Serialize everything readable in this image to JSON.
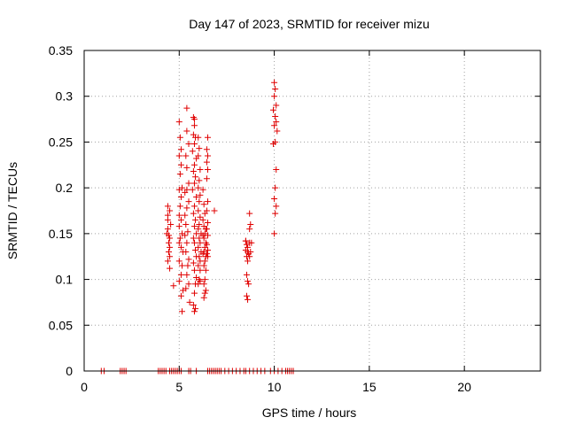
{
  "chart_data": {
    "type": "scatter",
    "title": "Day 147 of 2023, SRMTID for receiver mizu",
    "xlabel": "GPS time / hours",
    "ylabel": "SRMTID / TECUs",
    "xlim": [
      0,
      24
    ],
    "ylim": [
      0,
      0.35
    ],
    "x_ticks": [
      0,
      5,
      10,
      15,
      20
    ],
    "x_tick_labels": [
      "0",
      "5",
      "10",
      "15",
      "20"
    ],
    "y_ticks": [
      0,
      0.05,
      0.1,
      0.15,
      0.2,
      0.25,
      0.3,
      0.35
    ],
    "y_tick_labels": [
      "0",
      "0.05",
      "0.1",
      "0.15",
      "0.2",
      "0.25",
      "0.3",
      "0.35"
    ],
    "grid": true,
    "legend": "none",
    "marker": "plus",
    "series_color": "#e00000",
    "series": [
      {
        "points": [
          [
            0.9,
            0
          ],
          [
            1.05,
            0
          ],
          [
            1.9,
            0
          ],
          [
            2.0,
            0
          ],
          [
            2.1,
            0
          ],
          [
            2.2,
            0
          ],
          [
            3.9,
            0
          ],
          [
            4.0,
            0
          ],
          [
            4.1,
            0
          ],
          [
            4.2,
            0
          ],
          [
            4.3,
            0
          ],
          [
            4.5,
            0
          ],
          [
            4.6,
            0
          ],
          [
            4.7,
            0
          ],
          [
            4.8,
            0
          ],
          [
            4.9,
            0
          ],
          [
            5.0,
            0
          ],
          [
            5.1,
            0
          ],
          [
            5.5,
            0
          ],
          [
            5.6,
            0
          ],
          [
            5.9,
            0
          ],
          [
            6.5,
            0
          ],
          [
            6.6,
            0
          ],
          [
            6.7,
            0
          ],
          [
            6.8,
            0
          ],
          [
            6.9,
            0
          ],
          [
            7.0,
            0
          ],
          [
            7.1,
            0
          ],
          [
            7.2,
            0
          ],
          [
            7.4,
            0
          ],
          [
            7.6,
            0
          ],
          [
            7.8,
            0
          ],
          [
            8.0,
            0
          ],
          [
            8.2,
            0
          ],
          [
            8.4,
            0
          ],
          [
            8.5,
            0
          ],
          [
            8.7,
            0
          ],
          [
            8.9,
            0
          ],
          [
            9.1,
            0
          ],
          [
            9.3,
            0
          ],
          [
            9.5,
            0
          ],
          [
            9.8,
            0
          ],
          [
            10.0,
            0
          ],
          [
            10.2,
            0
          ],
          [
            10.4,
            0
          ],
          [
            10.6,
            0
          ],
          [
            10.7,
            0
          ],
          [
            10.8,
            0
          ],
          [
            10.9,
            0
          ],
          [
            11.0,
            0
          ],
          [
            4.4,
            0.18
          ],
          [
            4.4,
            0.165
          ],
          [
            4.4,
            0.155
          ],
          [
            4.45,
            0.148
          ],
          [
            4.45,
            0.14
          ],
          [
            4.5,
            0.135
          ],
          [
            4.45,
            0.13
          ],
          [
            4.5,
            0.125
          ],
          [
            4.4,
            0.12
          ],
          [
            4.5,
            0.112
          ],
          [
            4.4,
            0.17
          ],
          [
            4.55,
            0.16
          ],
          [
            4.5,
            0.175
          ],
          [
            4.35,
            0.15
          ],
          [
            4.5,
            0.145
          ],
          [
            4.7,
            0.093
          ],
          [
            5.0,
            0.272
          ],
          [
            5.05,
            0.255
          ],
          [
            5.1,
            0.242
          ],
          [
            5.0,
            0.235
          ],
          [
            5.1,
            0.225
          ],
          [
            5.05,
            0.215
          ],
          [
            5.15,
            0.2
          ],
          [
            5.0,
            0.198
          ],
          [
            5.1,
            0.19
          ],
          [
            5.05,
            0.18
          ],
          [
            5.0,
            0.17
          ],
          [
            5.1,
            0.165
          ],
          [
            5.0,
            0.158
          ],
          [
            5.15,
            0.15
          ],
          [
            5.05,
            0.145
          ],
          [
            5.0,
            0.14
          ],
          [
            5.1,
            0.135
          ],
          [
            5.2,
            0.13
          ],
          [
            5.0,
            0.12
          ],
          [
            5.15,
            0.115
          ],
          [
            5.1,
            0.105
          ],
          [
            5.0,
            0.098
          ],
          [
            5.2,
            0.088
          ],
          [
            5.1,
            0.082
          ],
          [
            5.15,
            0.065
          ],
          [
            5.4,
            0.287
          ],
          [
            5.4,
            0.262
          ],
          [
            5.5,
            0.248
          ],
          [
            5.35,
            0.235
          ],
          [
            5.4,
            0.222
          ],
          [
            5.5,
            0.205
          ],
          [
            5.4,
            0.198
          ],
          [
            5.3,
            0.195
          ],
          [
            5.5,
            0.185
          ],
          [
            5.4,
            0.178
          ],
          [
            5.3,
            0.17
          ],
          [
            5.35,
            0.16
          ],
          [
            5.45,
            0.152
          ],
          [
            5.3,
            0.148
          ],
          [
            5.4,
            0.14
          ],
          [
            5.35,
            0.13
          ],
          [
            5.5,
            0.122
          ],
          [
            5.45,
            0.115
          ],
          [
            5.4,
            0.105
          ],
          [
            5.5,
            0.095
          ],
          [
            5.35,
            0.09
          ],
          [
            5.55,
            0.075
          ],
          [
            5.75,
            0.277
          ],
          [
            5.8,
            0.275
          ],
          [
            5.8,
            0.268
          ],
          [
            5.75,
            0.258
          ],
          [
            5.85,
            0.255
          ],
          [
            5.8,
            0.248
          ],
          [
            5.7,
            0.24
          ],
          [
            5.9,
            0.232
          ],
          [
            5.8,
            0.225
          ],
          [
            5.75,
            0.218
          ],
          [
            5.85,
            0.212
          ],
          [
            5.8,
            0.205
          ],
          [
            5.7,
            0.198
          ],
          [
            5.9,
            0.19
          ],
          [
            5.8,
            0.18
          ],
          [
            5.75,
            0.172
          ],
          [
            5.85,
            0.165
          ],
          [
            5.8,
            0.158
          ],
          [
            5.9,
            0.15
          ],
          [
            5.75,
            0.145
          ],
          [
            5.8,
            0.14
          ],
          [
            5.85,
            0.132
          ],
          [
            5.9,
            0.125
          ],
          [
            5.75,
            0.118
          ],
          [
            5.8,
            0.11
          ],
          [
            5.9,
            0.102
          ],
          [
            5.85,
            0.095
          ],
          [
            5.8,
            0.085
          ],
          [
            5.75,
            0.072
          ],
          [
            5.85,
            0.068
          ],
          [
            5.8,
            0.065
          ],
          [
            6.0,
            0.255
          ],
          [
            6.05,
            0.243
          ],
          [
            6.0,
            0.235
          ],
          [
            6.1,
            0.22
          ],
          [
            6.05,
            0.208
          ],
          [
            6.0,
            0.2
          ],
          [
            6.1,
            0.192
          ],
          [
            6.05,
            0.185
          ],
          [
            6.0,
            0.175
          ],
          [
            6.1,
            0.168
          ],
          [
            6.05,
            0.16
          ],
          [
            6.0,
            0.155
          ],
          [
            6.15,
            0.15
          ],
          [
            6.05,
            0.145
          ],
          [
            6.1,
            0.14
          ],
          [
            6.0,
            0.135
          ],
          [
            6.15,
            0.13
          ],
          [
            6.05,
            0.125
          ],
          [
            6.1,
            0.12
          ],
          [
            6.0,
            0.115
          ],
          [
            6.1,
            0.11
          ],
          [
            6.05,
            0.1
          ],
          [
            6.0,
            0.095
          ],
          [
            6.1,
            0.098
          ],
          [
            6.25,
            0.198
          ],
          [
            6.3,
            0.182
          ],
          [
            6.35,
            0.172
          ],
          [
            6.25,
            0.165
          ],
          [
            6.3,
            0.158
          ],
          [
            6.4,
            0.155
          ],
          [
            6.35,
            0.15
          ],
          [
            6.25,
            0.148
          ],
          [
            6.3,
            0.145
          ],
          [
            6.4,
            0.14
          ],
          [
            6.35,
            0.135
          ],
          [
            6.3,
            0.13
          ],
          [
            6.25,
            0.128
          ],
          [
            6.4,
            0.125
          ],
          [
            6.35,
            0.12
          ],
          [
            6.3,
            0.115
          ],
          [
            6.4,
            0.11
          ],
          [
            6.35,
            0.1
          ],
          [
            6.3,
            0.095
          ],
          [
            6.4,
            0.088
          ],
          [
            6.35,
            0.085
          ],
          [
            6.3,
            0.08
          ],
          [
            6.5,
            0.255
          ],
          [
            6.45,
            0.242
          ],
          [
            6.5,
            0.235
          ],
          [
            6.45,
            0.228
          ],
          [
            6.5,
            0.22
          ],
          [
            6.45,
            0.21
          ],
          [
            6.5,
            0.185
          ],
          [
            6.45,
            0.175
          ],
          [
            6.5,
            0.162
          ],
          [
            6.45,
            0.155
          ],
          [
            6.5,
            0.148
          ],
          [
            6.45,
            0.138
          ],
          [
            6.5,
            0.132
          ],
          [
            6.45,
            0.128
          ],
          [
            6.5,
            0.125
          ],
          [
            6.85,
            0.175
          ],
          [
            8.5,
            0.142
          ],
          [
            8.55,
            0.138
          ],
          [
            8.6,
            0.135
          ],
          [
            8.5,
            0.132
          ],
          [
            8.65,
            0.128
          ],
          [
            8.55,
            0.125
          ],
          [
            8.6,
            0.12
          ],
          [
            8.5,
            0.142
          ],
          [
            8.7,
            0.14
          ],
          [
            8.6,
            0.13
          ],
          [
            8.55,
            0.105
          ],
          [
            8.6,
            0.098
          ],
          [
            8.65,
            0.095
          ],
          [
            8.55,
            0.082
          ],
          [
            8.6,
            0.078
          ],
          [
            8.7,
            0.172
          ],
          [
            8.75,
            0.16
          ],
          [
            8.7,
            0.155
          ],
          [
            8.8,
            0.14
          ],
          [
            8.75,
            0.13
          ],
          [
            8.7,
            0.125
          ],
          [
            10.0,
            0.315
          ],
          [
            10.05,
            0.308
          ],
          [
            10.0,
            0.3
          ],
          [
            10.1,
            0.29
          ],
          [
            9.95,
            0.285
          ],
          [
            10.05,
            0.278
          ],
          [
            10.1,
            0.272
          ],
          [
            10.0,
            0.268
          ],
          [
            10.15,
            0.262
          ],
          [
            10.05,
            0.25
          ],
          [
            9.95,
            0.248
          ],
          [
            10.1,
            0.22
          ],
          [
            10.05,
            0.2
          ],
          [
            10.0,
            0.188
          ],
          [
            10.1,
            0.18
          ],
          [
            10.05,
            0.172
          ],
          [
            10.0,
            0.15
          ]
        ]
      }
    ]
  }
}
